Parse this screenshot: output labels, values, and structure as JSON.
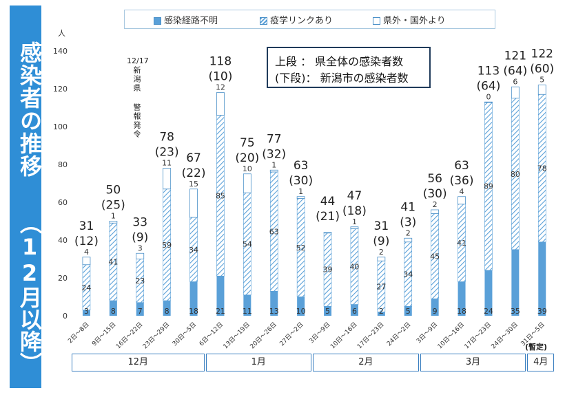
{
  "side_title": {
    "line1": "感染者の推移",
    "line2": "（12月以降）"
  },
  "legend": {
    "items": [
      {
        "label": "感染経路不明",
        "pattern": "solid"
      },
      {
        "label": "疫学リンクあり",
        "pattern": "hatch"
      },
      {
        "label": "県外・国外より",
        "pattern": "empty"
      }
    ]
  },
  "note": {
    "line1": "上段 ： 県全体の感染者数",
    "line2": "(下段)： 新潟市の感染者数"
  },
  "warning": {
    "date": "12/17",
    "text": "新潟県 警報発令"
  },
  "unit": "人",
  "tentative_label": "(暫定)",
  "colors": {
    "solid": "#5aa0d8",
    "hatch": "#5aa0d8",
    "frame": "#4a90c8"
  },
  "chart_data": {
    "type": "bar",
    "stacked": true,
    "ylim": [
      0,
      140
    ],
    "yticks": [
      0,
      20,
      40,
      60,
      80,
      100,
      120,
      140
    ],
    "categories": [
      "2日～8日",
      "9日～15日",
      "16日～22日",
      "23日～29日",
      "30日～5日",
      "6日～12日",
      "13日～19日",
      "20日～26日",
      "27日～2日",
      "3日～9日",
      "10日～16日",
      "17日～23日",
      "24日～2日",
      "3日～9日",
      "10日～16日",
      "17日～23日",
      "24日～30日",
      "31日～5日"
    ],
    "series": [
      {
        "name": "感染経路不明",
        "values": [
          3,
          8,
          7,
          8,
          18,
          21,
          11,
          13,
          10,
          5,
          6,
          2,
          5,
          9,
          18,
          24,
          35,
          39
        ]
      },
      {
        "name": "疫学リンクあり",
        "values": [
          24,
          41,
          23,
          59,
          34,
          85,
          54,
          63,
          52,
          39,
          40,
          27,
          34,
          45,
          41,
          89,
          80,
          78
        ]
      },
      {
        "name": "県外・国外より",
        "values": [
          4,
          1,
          3,
          11,
          15,
          12,
          10,
          1,
          1,
          null,
          1,
          2,
          2,
          2,
          4,
          0,
          6,
          5
        ]
      }
    ],
    "totals": [
      "31",
      "50",
      "33",
      "78",
      "67",
      "118",
      "75",
      "77",
      "63",
      "44",
      "47",
      "31",
      "41",
      "56",
      "63",
      "113",
      "121",
      "122"
    ],
    "niigata_city": [
      "(12)",
      "(25)",
      "(9)",
      "(23)",
      "(22)",
      "(10)",
      "(20)",
      "(32)",
      "(30)",
      "(21)",
      "(18)",
      "(9)",
      "(3)",
      "(30)",
      "(36)",
      "(64)",
      "(64)",
      "(60)"
    ],
    "months": [
      {
        "label": "12月"
      },
      {
        "label": "1月"
      },
      {
        "label": "2月"
      },
      {
        "label": "3月"
      },
      {
        "label": "4月"
      }
    ]
  }
}
